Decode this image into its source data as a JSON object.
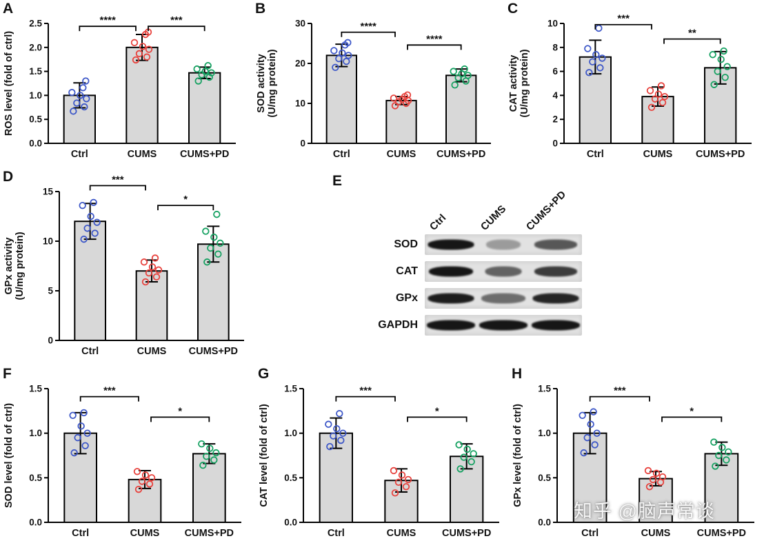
{
  "watermark": "知乎 @脑声常谈",
  "style": {
    "bar_fill": "#d8d8d8",
    "axis_color": "#000000",
    "group_colors": [
      "#3d57c8",
      "#e8423d",
      "#15a161"
    ]
  },
  "blot": {
    "panel": "E",
    "col_labels": [
      "Ctrl",
      "CUMS",
      "CUMS+PD"
    ],
    "rows": [
      {
        "label": "SOD",
        "bands": [
          {
            "intensity": 1.0,
            "width": 0.85
          },
          {
            "intensity": 0.22,
            "width": 0.55
          },
          {
            "intensity": 0.62,
            "width": 0.75
          }
        ]
      },
      {
        "label": "CAT",
        "bands": [
          {
            "intensity": 1.0,
            "width": 0.8
          },
          {
            "intensity": 0.55,
            "width": 0.6
          },
          {
            "intensity": 0.78,
            "width": 0.75
          }
        ]
      },
      {
        "label": "GPx",
        "bands": [
          {
            "intensity": 0.95,
            "width": 0.85
          },
          {
            "intensity": 0.5,
            "width": 0.8
          },
          {
            "intensity": 0.9,
            "width": 0.85
          }
        ]
      },
      {
        "label": "GAPDH",
        "bands": [
          {
            "intensity": 1.0,
            "width": 0.9
          },
          {
            "intensity": 1.0,
            "width": 0.9
          },
          {
            "intensity": 1.0,
            "width": 0.9
          }
        ]
      }
    ]
  },
  "chart_data": [
    {
      "panel": "A",
      "type": "bar",
      "ylabel_lines": [
        "ROS level (fold of ctrl)"
      ],
      "categories": [
        "Ctrl",
        "CUMS",
        "CUMS+PD"
      ],
      "values": [
        1.0,
        2.0,
        1.47
      ],
      "errors": [
        0.26,
        0.27,
        0.12
      ],
      "ylim": [
        0,
        2.5
      ],
      "yticks": [
        0,
        0.5,
        1.0,
        1.5,
        2.0,
        2.5
      ],
      "ytick_labels": [
        "0.0",
        "0.5",
        "1.0",
        "1.5",
        "2.0",
        "2.5"
      ],
      "points": [
        [
          0.67,
          0.76,
          0.84,
          0.93,
          1.0,
          1.06,
          1.16,
          1.3
        ],
        [
          1.74,
          1.8,
          1.87,
          1.96,
          2.02,
          2.1,
          2.27,
          2.32
        ],
        [
          1.3,
          1.38,
          1.43,
          1.47,
          1.5,
          1.55,
          1.62
        ]
      ],
      "significance": [
        {
          "from": 0,
          "to": 1,
          "label": "****",
          "y": 2.44
        },
        {
          "from": 1,
          "to": 2,
          "label": "***",
          "y": 2.44
        }
      ]
    },
    {
      "panel": "B",
      "type": "bar",
      "ylabel_lines": [
        "SOD activity",
        "(U/mg protein)"
      ],
      "categories": [
        "Ctrl",
        "CUMS",
        "CUMS+PD"
      ],
      "values": [
        22,
        10.7,
        17
      ],
      "errors": [
        2.8,
        1.0,
        1.6
      ],
      "ylim": [
        0,
        30
      ],
      "yticks": [
        0,
        10,
        20,
        30
      ],
      "ytick_labels": [
        "0",
        "10",
        "20",
        "30"
      ],
      "points": [
        [
          19,
          20.5,
          21.2,
          22,
          22.6,
          23.2,
          24.6,
          25.2
        ],
        [
          9.4,
          10,
          10.4,
          10.7,
          11,
          11.3,
          11.7,
          12.1
        ],
        [
          14.6,
          15.6,
          16.4,
          17,
          17.4,
          18,
          18.6
        ]
      ],
      "significance": [
        {
          "from": 0,
          "to": 1,
          "label": "****",
          "y": 27.8
        },
        {
          "from": 1,
          "to": 2,
          "label": "****",
          "y": 24.6
        }
      ]
    },
    {
      "panel": "C",
      "type": "bar",
      "ylabel_lines": [
        "CAT activity",
        "(U/mg protein)"
      ],
      "categories": [
        "Ctrl",
        "CUMS",
        "CUMS+PD"
      ],
      "values": [
        7.2,
        3.9,
        6.3
      ],
      "errors": [
        1.4,
        0.8,
        1.35
      ],
      "ylim": [
        0,
        10
      ],
      "yticks": [
        0,
        2,
        4,
        6,
        8,
        10
      ],
      "ytick_labels": [
        "0",
        "2",
        "4",
        "6",
        "8",
        "10"
      ],
      "points": [
        [
          5.9,
          6.3,
          6.8,
          7.1,
          7.4,
          7.9,
          9.6
        ],
        [
          3.0,
          3.4,
          3.7,
          3.9,
          4.1,
          4.4,
          4.8
        ],
        [
          4.9,
          5.5,
          6.0,
          6.4,
          7.0,
          7.4,
          7.7
        ]
      ],
      "significance": [
        {
          "from": 0,
          "to": 1,
          "label": "***",
          "y": 9.9
        },
        {
          "from": 1,
          "to": 2,
          "label": "**",
          "y": 8.7
        }
      ]
    },
    {
      "panel": "D",
      "type": "bar",
      "ylabel_lines": [
        "GPx activity",
        "(U/mg protein)"
      ],
      "categories": [
        "Ctrl",
        "CUMS",
        "CUMS+PD"
      ],
      "values": [
        12,
        7,
        9.7
      ],
      "errors": [
        1.8,
        1.1,
        1.8
      ],
      "ylim": [
        0,
        15
      ],
      "yticks": [
        0,
        5,
        10,
        15
      ],
      "ytick_labels": [
        "0",
        "5",
        "10",
        "15"
      ],
      "points": [
        [
          10.2,
          10.8,
          11.3,
          11.9,
          12.5,
          13.6,
          13.9
        ],
        [
          5.9,
          6.4,
          6.8,
          7.1,
          7.4,
          7.9,
          8.3
        ],
        [
          7.9,
          8.7,
          9.3,
          9.8,
          10.4,
          11.0,
          12.7
        ]
      ],
      "significance": [
        {
          "from": 0,
          "to": 1,
          "label": "***",
          "y": 15.6
        },
        {
          "from": 1,
          "to": 2,
          "label": "*",
          "y": 13.6
        }
      ]
    },
    {
      "panel": "F",
      "type": "bar",
      "ylabel_lines": [
        "SOD level (fold of ctrl)"
      ],
      "categories": [
        "Ctrl",
        "CUMS",
        "CUMS+PD"
      ],
      "values": [
        1.0,
        0.48,
        0.77
      ],
      "errors": [
        0.23,
        0.1,
        0.11
      ],
      "ylim": [
        0,
        1.5
      ],
      "yticks": [
        0,
        0.5,
        1.0,
        1.5
      ],
      "ytick_labels": [
        "0.0",
        "0.5",
        "1.0",
        "1.5"
      ],
      "points": [
        [
          0.78,
          0.86,
          0.95,
          1.0,
          1.08,
          1.2,
          1.23
        ],
        [
          0.37,
          0.43,
          0.46,
          0.5,
          0.53,
          0.57
        ],
        [
          0.64,
          0.7,
          0.74,
          0.78,
          0.83,
          0.88
        ]
      ],
      "significance": [
        {
          "from": 0,
          "to": 1,
          "label": "***",
          "y": 1.41
        },
        {
          "from": 1,
          "to": 2,
          "label": "*",
          "y": 1.18
        }
      ]
    },
    {
      "panel": "G",
      "type": "bar",
      "ylabel_lines": [
        "CAT level (fold of ctrl)"
      ],
      "categories": [
        "Ctrl",
        "CUMS",
        "CUMS+PD"
      ],
      "values": [
        1.0,
        0.47,
        0.74
      ],
      "errors": [
        0.17,
        0.13,
        0.14
      ],
      "ylim": [
        0,
        1.5
      ],
      "yticks": [
        0,
        0.5,
        1.0,
        1.5
      ],
      "ytick_labels": [
        "0.0",
        "0.5",
        "1.0",
        "1.5"
      ],
      "points": [
        [
          0.85,
          0.92,
          0.97,
          1.0,
          1.05,
          1.1,
          1.22
        ],
        [
          0.33,
          0.4,
          0.45,
          0.48,
          0.53,
          0.58
        ],
        [
          0.6,
          0.68,
          0.73,
          0.77,
          0.82,
          0.87
        ]
      ],
      "significance": [
        {
          "from": 0,
          "to": 1,
          "label": "***",
          "y": 1.41
        },
        {
          "from": 1,
          "to": 2,
          "label": "*",
          "y": 1.18
        }
      ]
    },
    {
      "panel": "H",
      "type": "bar",
      "ylabel_lines": [
        "GPx level (fold of ctrl)"
      ],
      "categories": [
        "Ctrl",
        "CUMS",
        "CUMS+PD"
      ],
      "values": [
        1.0,
        0.49,
        0.77
      ],
      "errors": [
        0.23,
        0.08,
        0.13
      ],
      "ylim": [
        0,
        1.5
      ],
      "yticks": [
        0,
        0.5,
        1.0,
        1.5
      ],
      "ytick_labels": [
        "0.0",
        "0.5",
        "1.0",
        "1.5"
      ],
      "points": [
        [
          0.78,
          0.87,
          0.95,
          1.0,
          1.1,
          1.2,
          1.24
        ],
        [
          0.4,
          0.45,
          0.48,
          0.51,
          0.55,
          0.58
        ],
        [
          0.63,
          0.7,
          0.75,
          0.79,
          0.84,
          0.9
        ]
      ],
      "significance": [
        {
          "from": 0,
          "to": 1,
          "label": "***",
          "y": 1.41
        },
        {
          "from": 1,
          "to": 2,
          "label": "*",
          "y": 1.18
        }
      ]
    }
  ]
}
